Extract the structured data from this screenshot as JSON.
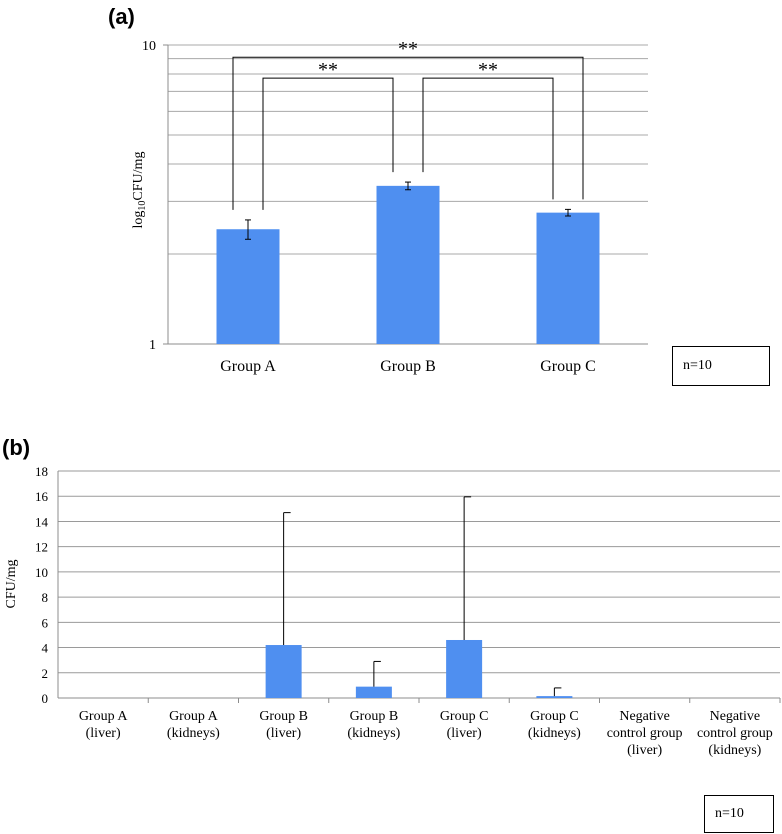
{
  "chart_data": [
    {
      "panel": "(a)",
      "type": "bar",
      "ylabel_main": "log",
      "ylabel_sub": "10",
      "ylabel_rest": "CFU/mg",
      "yscale": "log",
      "ylim": [
        1,
        10
      ],
      "yticks": [
        "1",
        "10"
      ],
      "grid": true,
      "categories": [
        "Group A",
        "Group B",
        "Group C"
      ],
      "values": [
        2.42,
        3.38,
        2.75
      ],
      "errors": [
        0.18,
        0.1,
        0.07
      ],
      "significance": [
        {
          "from": 0,
          "to": 2,
          "label": "**",
          "y": 9.1
        },
        {
          "from": 0,
          "to": 1,
          "label": "**",
          "y": 7.75
        },
        {
          "from": 1,
          "to": 2,
          "label": "**",
          "y": 7.75
        }
      ],
      "n_label": "n=10",
      "bar_color": "#4f8ff0"
    },
    {
      "panel": "(b)",
      "type": "bar",
      "ylabel": "CFU/mg",
      "ylim": [
        0,
        18
      ],
      "yticks": [
        "0",
        "2",
        "4",
        "6",
        "8",
        "10",
        "12",
        "14",
        "16",
        "18"
      ],
      "grid": true,
      "categories": [
        [
          "Group A",
          "(liver)"
        ],
        [
          "Group A",
          "(kidneys)"
        ],
        [
          "Group B",
          "(liver)"
        ],
        [
          "Group B",
          "(kidneys)"
        ],
        [
          "Group C",
          "(liver)"
        ],
        [
          "Group C",
          "(kidneys)"
        ],
        [
          "Negative",
          "control group",
          "(liver)"
        ],
        [
          "Negative",
          "control group",
          "(kidneys)"
        ]
      ],
      "values": [
        0,
        0,
        4.2,
        0.9,
        4.6,
        0.15,
        0,
        0
      ],
      "errors": [
        0,
        0,
        10.5,
        2.0,
        11.35,
        0.65,
        0,
        0
      ],
      "n_label": "n=10",
      "bar_color": "#4f8ff0"
    }
  ]
}
